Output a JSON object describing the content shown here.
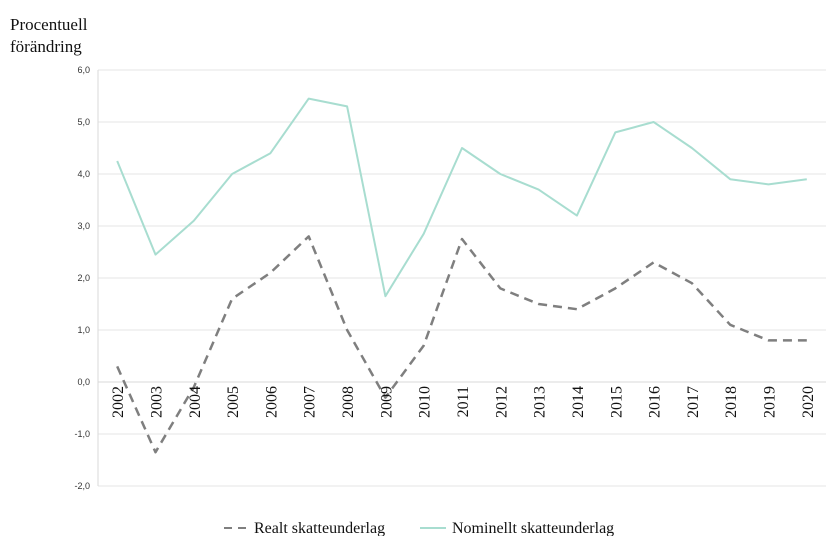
{
  "chart_data": {
    "type": "line",
    "ylabel_lines": [
      "Procentuell",
      "förändring"
    ],
    "xlabel": "",
    "categories": [
      "2002",
      "2003",
      "2004",
      "2005",
      "2006",
      "2007",
      "2008",
      "2009",
      "2010",
      "2011",
      "2012",
      "2013",
      "2014",
      "2015",
      "2016",
      "2017",
      "2018",
      "2019",
      "2020"
    ],
    "ylim": [
      -2.0,
      6.0
    ],
    "yticks": [
      "6,0",
      "5,0",
      "4,0",
      "3,0",
      "2,0",
      "1,0",
      "0,0",
      "-1,0",
      "-2,0"
    ],
    "ytick_values": [
      6,
      5,
      4,
      3,
      2,
      1,
      0,
      -1,
      -2
    ],
    "grid": true,
    "legend_position": "bottom",
    "series": [
      {
        "name": "Realt skatteunderlag",
        "color": "#7f7f7f",
        "style": "dashed",
        "values": [
          0.3,
          -1.35,
          -0.1,
          1.6,
          2.1,
          2.8,
          1.0,
          -0.3,
          0.7,
          2.75,
          1.8,
          1.5,
          1.4,
          1.8,
          2.3,
          1.9,
          1.1,
          0.8,
          0.8
        ]
      },
      {
        "name": "Nominellt skatteunderlag",
        "color": "#a8ddd0",
        "style": "solid",
        "values": [
          4.25,
          2.45,
          3.1,
          4.0,
          4.4,
          5.45,
          5.3,
          1.65,
          2.85,
          4.5,
          4.0,
          3.7,
          3.2,
          4.8,
          5.0,
          4.5,
          3.9,
          3.8,
          3.9
        ]
      }
    ]
  }
}
